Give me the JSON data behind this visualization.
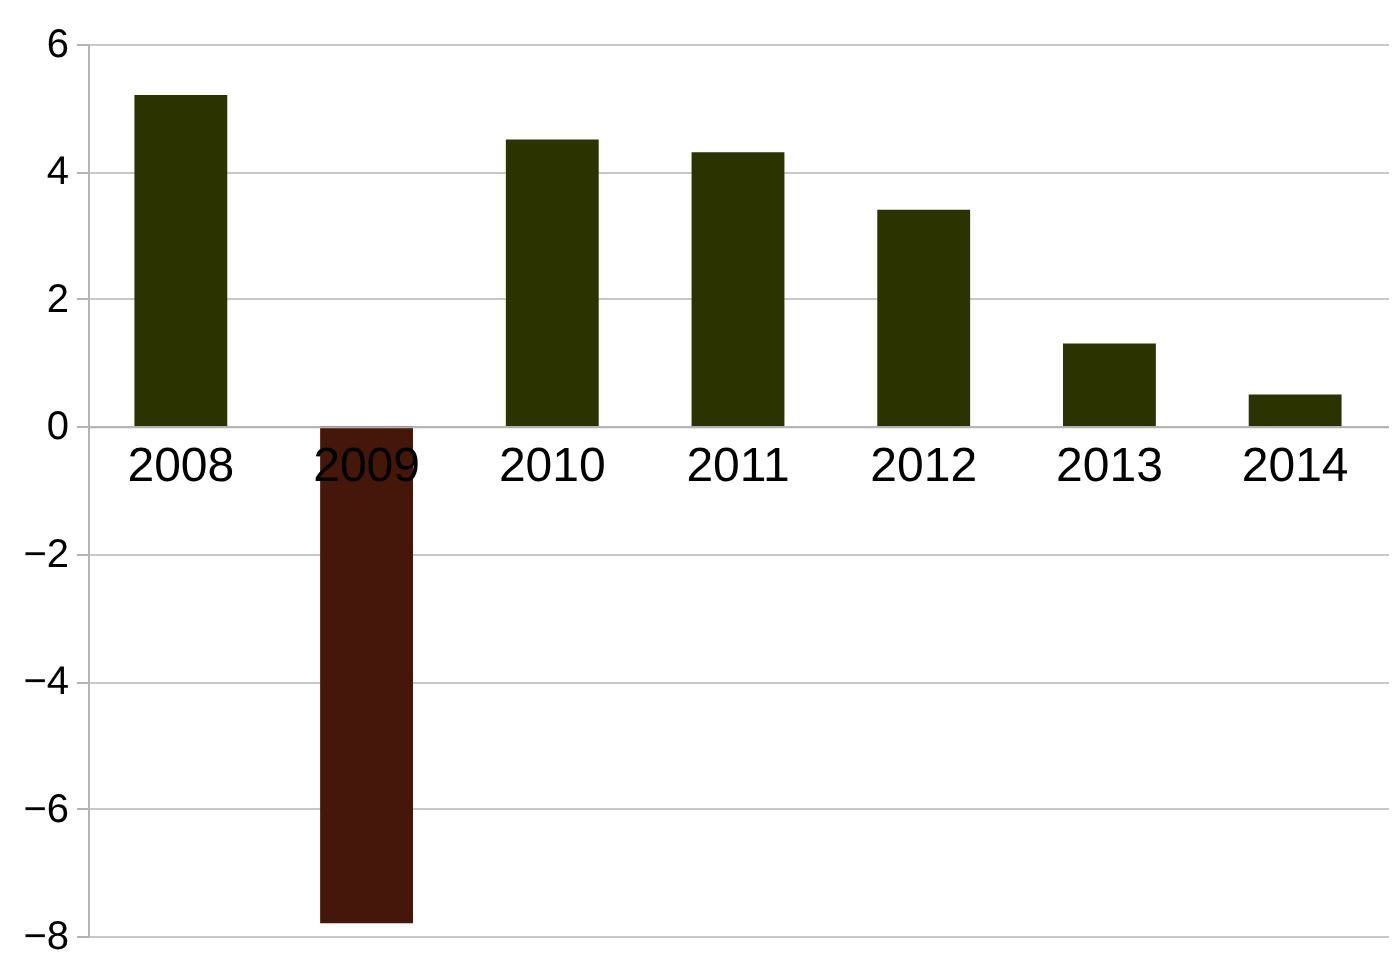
{
  "chart_data": {
    "type": "bar",
    "categories": [
      "2008",
      "2009",
      "2010",
      "2011",
      "2012",
      "2013",
      "2014"
    ],
    "values": [
      5.2,
      -7.8,
      4.5,
      4.3,
      3.4,
      1.3,
      0.5
    ],
    "colors": [
      "#2b3300",
      "#45170a",
      "#2b3300",
      "#2b3300",
      "#2b3300",
      "#2b3300",
      "#2b3300"
    ],
    "ylim": [
      -8,
      6
    ],
    "yticks": [
      -8,
      -6,
      -4,
      -2,
      0,
      2,
      4,
      6
    ],
    "grid": "y",
    "legend": false
  }
}
